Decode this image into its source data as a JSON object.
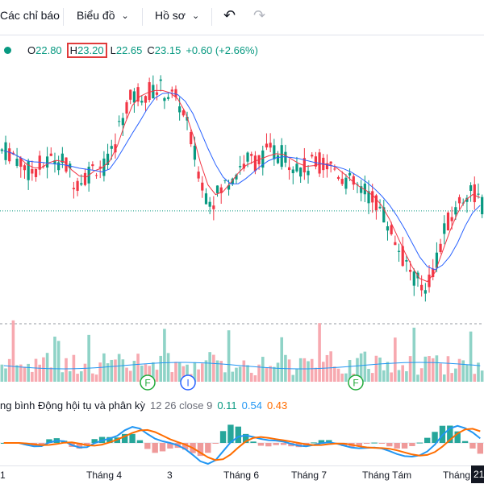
{
  "toolbar": {
    "indicators_label": "Các chỉ báo",
    "chart_label": "Biểu đồ",
    "profile_label": "Hồ sơ",
    "chevron": "⌄",
    "undo_icon": "↶",
    "redo_icon": "↷"
  },
  "ohlc": {
    "o_label": "O",
    "o_value": "22.80",
    "h_label": "H",
    "h_value": "23.20",
    "l_label": "L",
    "l_value": "22.65",
    "c_label": "C",
    "c_value": "23.15",
    "change": "+0.60 (+2.66%)"
  },
  "colors": {
    "up": "#089981",
    "down": "#f23645",
    "ma_fast": "#f23645",
    "ma_slow": "#2962ff",
    "macd_line": "#2196f3",
    "signal_line": "#ff6d00",
    "highlight": "#e03b3b"
  },
  "events": [
    {
      "letter": "F",
      "color": "#22ab3b"
    },
    {
      "letter": "I",
      "color": "#2962ff"
    },
    {
      "letter": "F",
      "color": "#22ab3b"
    }
  ],
  "macd": {
    "label": "ng bình Động hội tụ và phân kỳ",
    "params": "12 26 close 9",
    "hist_value": "0.11",
    "macd_value": "0.54",
    "signal_value": "0.43"
  },
  "xaxis": {
    "ticks": [
      "1",
      "Tháng 4",
      "3",
      "Tháng 6",
      "Tháng 7",
      "Tháng Tám",
      "Tháng"
    ],
    "cursor_label": "21"
  },
  "chart_data": {
    "type": "candlestick",
    "series": [
      {
        "name": "",
        "values": [
          22.6,
          22.5,
          22.3,
          22.1,
          22.25,
          22.3,
          22.45,
          22.4,
          22.2,
          21.9,
          22.0,
          22.15,
          22.3,
          22.2,
          22.6,
          23.3,
          23.7,
          23.85,
          23.9,
          23.95,
          24.0,
          23.9,
          23.8,
          23.6,
          23.0,
          22.3,
          21.7,
          21.5,
          21.65,
          21.9,
          22.1,
          22.3,
          22.4,
          22.35,
          22.5,
          22.6,
          22.5,
          22.45,
          22.3,
          22.2,
          22.25,
          22.35,
          22.3,
          22.25,
          22.1,
          21.9,
          21.8,
          21.7,
          21.6,
          21.4,
          21.1,
          20.7,
          20.3,
          20.0,
          19.7,
          19.5,
          19.8,
          20.3,
          20.9,
          21.2,
          21.5,
          21.75,
          21.6,
          21.3
        ]
      }
    ],
    "moving_averages": [
      "fast",
      "slow"
    ],
    "volume": true,
    "macd_panel": true,
    "grid": false
  }
}
